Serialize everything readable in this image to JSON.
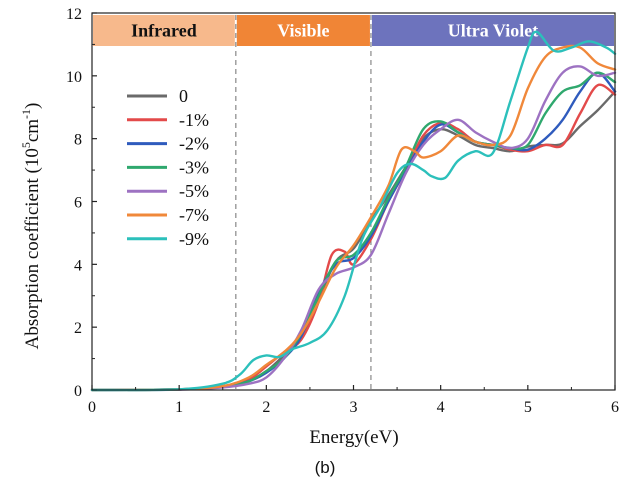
{
  "chart_data": {
    "type": "line",
    "caption": "(b)",
    "xlabel": "Energy(eV)",
    "ylabel_parts": {
      "prefix": "Absorption coefficient (10",
      "sup1": "5",
      "mid": "cm",
      "sup2": "-1",
      "suffix": ")"
    },
    "xlim": [
      0,
      6
    ],
    "ylim": [
      0,
      12
    ],
    "xticks": [
      "0",
      "1",
      "2",
      "3",
      "4",
      "5",
      "6"
    ],
    "yticks": [
      "0",
      "2",
      "4",
      "6",
      "8",
      "10",
      "12"
    ],
    "regions": [
      {
        "label": "Infrared",
        "x0": 0,
        "x1": 1.65,
        "color": "#f7b98c",
        "text_color": "#111111"
      },
      {
        "label": "Visible",
        "x0": 1.65,
        "x1": 3.2,
        "color": "#f08536",
        "text_color": "#ffffff"
      },
      {
        "label": "Ultra Violet",
        "x0": 3.2,
        "x1": 6,
        "color": "#6d73bd",
        "text_color": "#ffffff"
      }
    ],
    "vlines": [
      1.65,
      3.2
    ],
    "legend": {
      "position": "upper-left"
    },
    "series": [
      {
        "name": "0",
        "color": "#6a6a6a",
        "points": [
          [
            0,
            0
          ],
          [
            1,
            0.02
          ],
          [
            1.5,
            0.1
          ],
          [
            1.8,
            0.3
          ],
          [
            2,
            0.6
          ],
          [
            2.2,
            1.1
          ],
          [
            2.4,
            1.7
          ],
          [
            2.6,
            2.9
          ],
          [
            2.8,
            4.1
          ],
          [
            3,
            4.5
          ],
          [
            3.2,
            5.4
          ],
          [
            3.4,
            6.2
          ],
          [
            3.6,
            7.1
          ],
          [
            3.8,
            8.0
          ],
          [
            4,
            8.3
          ],
          [
            4.2,
            8.1
          ],
          [
            4.4,
            7.8
          ],
          [
            4.6,
            7.7
          ],
          [
            4.8,
            7.6
          ],
          [
            5,
            7.75
          ],
          [
            5.2,
            7.8
          ],
          [
            5.4,
            7.85
          ],
          [
            5.6,
            8.4
          ],
          [
            5.8,
            8.9
          ],
          [
            6,
            9.5
          ]
        ]
      },
      {
        "name": "-1%",
        "color": "#e34a4a",
        "points": [
          [
            0,
            0
          ],
          [
            1,
            0.02
          ],
          [
            1.5,
            0.12
          ],
          [
            1.8,
            0.35
          ],
          [
            2,
            0.75
          ],
          [
            2.2,
            1.2
          ],
          [
            2.4,
            1.6
          ],
          [
            2.6,
            2.8
          ],
          [
            2.75,
            4.3
          ],
          [
            2.9,
            4.4
          ],
          [
            3,
            4.0
          ],
          [
            3.2,
            4.8
          ],
          [
            3.4,
            6.0
          ],
          [
            3.6,
            7.0
          ],
          [
            3.8,
            8.1
          ],
          [
            4,
            8.5
          ],
          [
            4.2,
            8.3
          ],
          [
            4.4,
            7.9
          ],
          [
            4.6,
            7.8
          ],
          [
            4.8,
            7.65
          ],
          [
            5,
            7.6
          ],
          [
            5.2,
            7.8
          ],
          [
            5.4,
            7.8
          ],
          [
            5.6,
            8.8
          ],
          [
            5.8,
            9.7
          ],
          [
            6,
            9.4
          ]
        ]
      },
      {
        "name": "-2%",
        "color": "#2f5bbd",
        "points": [
          [
            0,
            0
          ],
          [
            1,
            0.02
          ],
          [
            1.5,
            0.1
          ],
          [
            1.8,
            0.28
          ],
          [
            2,
            0.55
          ],
          [
            2.2,
            1.0
          ],
          [
            2.4,
            1.7
          ],
          [
            2.6,
            3.1
          ],
          [
            2.8,
            4.0
          ],
          [
            3,
            4.2
          ],
          [
            3.2,
            4.9
          ],
          [
            3.4,
            6.0
          ],
          [
            3.6,
            7.0
          ],
          [
            3.8,
            7.9
          ],
          [
            4,
            8.45
          ],
          [
            4.2,
            8.2
          ],
          [
            4.4,
            7.9
          ],
          [
            4.6,
            7.8
          ],
          [
            4.8,
            7.7
          ],
          [
            5,
            7.65
          ],
          [
            5.2,
            8.0
          ],
          [
            5.4,
            8.6
          ],
          [
            5.6,
            9.5
          ],
          [
            5.8,
            10.1
          ],
          [
            6,
            9.5
          ]
        ]
      },
      {
        "name": "-3%",
        "color": "#2fa86e",
        "points": [
          [
            0,
            0
          ],
          [
            1,
            0.02
          ],
          [
            1.5,
            0.1
          ],
          [
            1.8,
            0.28
          ],
          [
            2,
            0.6
          ],
          [
            2.2,
            1.0
          ],
          [
            2.4,
            1.8
          ],
          [
            2.6,
            3.0
          ],
          [
            2.8,
            4.1
          ],
          [
            3,
            4.3
          ],
          [
            3.2,
            5.0
          ],
          [
            3.4,
            6.1
          ],
          [
            3.6,
            7.1
          ],
          [
            3.8,
            8.3
          ],
          [
            4,
            8.55
          ],
          [
            4.2,
            8.2
          ],
          [
            4.4,
            7.9
          ],
          [
            4.6,
            7.8
          ],
          [
            4.8,
            7.7
          ],
          [
            5,
            7.8
          ],
          [
            5.2,
            8.8
          ],
          [
            5.4,
            9.5
          ],
          [
            5.6,
            9.7
          ],
          [
            5.8,
            10.1
          ],
          [
            6,
            9.8
          ]
        ]
      },
      {
        "name": "-5%",
        "color": "#9d72c2",
        "points": [
          [
            0,
            0
          ],
          [
            1,
            0.01
          ],
          [
            1.5,
            0.08
          ],
          [
            1.8,
            0.2
          ],
          [
            2,
            0.4
          ],
          [
            2.2,
            1.0
          ],
          [
            2.4,
            1.9
          ],
          [
            2.6,
            3.2
          ],
          [
            2.8,
            3.7
          ],
          [
            3,
            3.9
          ],
          [
            3.2,
            4.3
          ],
          [
            3.4,
            5.6
          ],
          [
            3.6,
            6.9
          ],
          [
            3.8,
            7.8
          ],
          [
            4,
            8.3
          ],
          [
            4.2,
            8.6
          ],
          [
            4.4,
            8.2
          ],
          [
            4.6,
            7.9
          ],
          [
            4.8,
            7.7
          ],
          [
            5,
            8.0
          ],
          [
            5.2,
            9.2
          ],
          [
            5.4,
            10.1
          ],
          [
            5.6,
            10.3
          ],
          [
            5.8,
            10.0
          ],
          [
            6,
            10.1
          ]
        ]
      },
      {
        "name": "-7%",
        "color": "#f0883a",
        "points": [
          [
            0,
            0
          ],
          [
            1,
            0.02
          ],
          [
            1.5,
            0.12
          ],
          [
            1.8,
            0.4
          ],
          [
            2,
            0.8
          ],
          [
            2.2,
            1.2
          ],
          [
            2.4,
            1.8
          ],
          [
            2.6,
            2.8
          ],
          [
            2.8,
            3.9
          ],
          [
            3,
            4.6
          ],
          [
            3.2,
            5.5
          ],
          [
            3.4,
            6.5
          ],
          [
            3.55,
            7.65
          ],
          [
            3.7,
            7.6
          ],
          [
            3.8,
            7.4
          ],
          [
            4,
            7.6
          ],
          [
            4.2,
            8.1
          ],
          [
            4.4,
            7.9
          ],
          [
            4.6,
            7.8
          ],
          [
            4.8,
            8.1
          ],
          [
            5,
            9.6
          ],
          [
            5.2,
            10.6
          ],
          [
            5.4,
            10.9
          ],
          [
            5.6,
            10.9
          ],
          [
            5.8,
            10.4
          ],
          [
            6,
            10.2
          ]
        ]
      },
      {
        "name": "-9%",
        "color": "#2cc0bb",
        "points": [
          [
            0,
            0
          ],
          [
            1,
            0.02
          ],
          [
            1.5,
            0.2
          ],
          [
            1.7,
            0.5
          ],
          [
            1.85,
            0.95
          ],
          [
            2,
            1.1
          ],
          [
            2.15,
            1.05
          ],
          [
            2.3,
            1.3
          ],
          [
            2.5,
            1.5
          ],
          [
            2.7,
            1.9
          ],
          [
            2.9,
            3.0
          ],
          [
            3.1,
            4.8
          ],
          [
            3.3,
            5.8
          ],
          [
            3.5,
            6.9
          ],
          [
            3.65,
            7.2
          ],
          [
            3.8,
            7.0
          ],
          [
            3.9,
            6.8
          ],
          [
            4.05,
            6.75
          ],
          [
            4.2,
            7.3
          ],
          [
            4.4,
            7.6
          ],
          [
            4.6,
            7.55
          ],
          [
            4.8,
            9.2
          ],
          [
            5,
            10.9
          ],
          [
            5.1,
            11.4
          ],
          [
            5.3,
            10.8
          ],
          [
            5.5,
            10.9
          ],
          [
            5.7,
            11.1
          ],
          [
            5.9,
            10.9
          ],
          [
            6,
            10.7
          ]
        ]
      }
    ]
  }
}
